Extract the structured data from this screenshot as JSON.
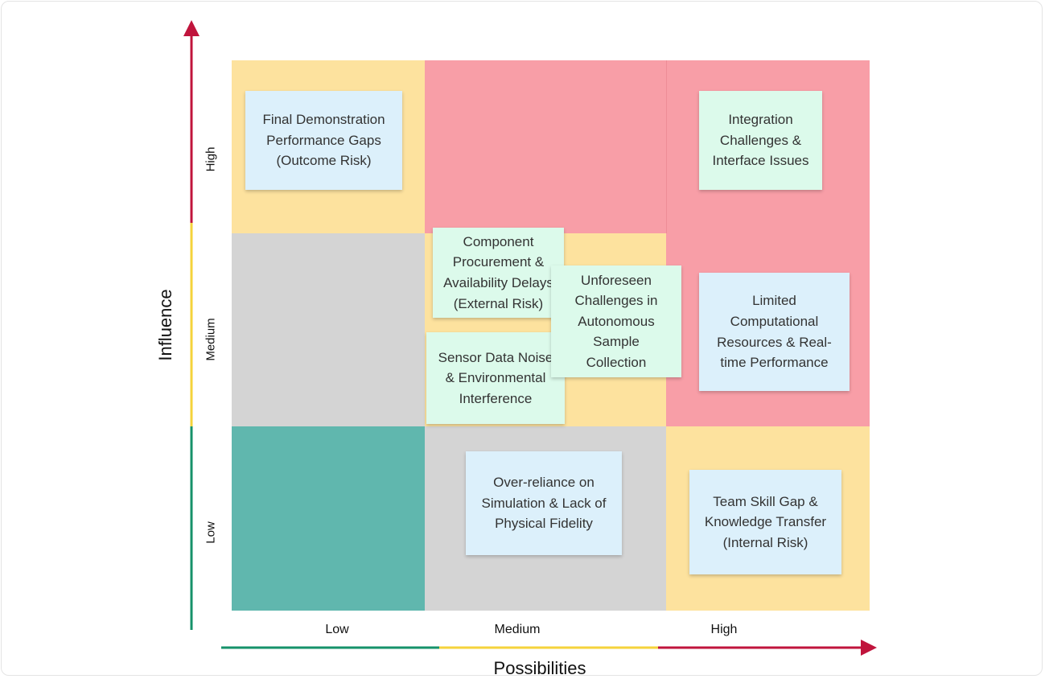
{
  "colors": {
    "red_zone": "#f89ea7",
    "amber_zone": "#fde29e",
    "grey_zone": "#d4d4d4",
    "teal_zone": "#60b7ae",
    "note_blue": "#dcf0fb",
    "note_green": "#dcfaeb",
    "axis_red": "#c0143c",
    "axis_yellow": "#f5d33b",
    "axis_green": "#16926a"
  },
  "axes": {
    "y_title": "Influence",
    "x_title": "Possibilities",
    "y_levels": [
      "High",
      "Medium",
      "Low"
    ],
    "x_levels": [
      "Low",
      "Medium",
      "High"
    ]
  },
  "notes": {
    "final_demo": "Final Demonstration\nPerformance Gaps\n(Outcome Risk)",
    "integration": "Integration\nChallenges &\nInterface Issues",
    "component": "Component\nProcurement &\nAvailability Delays\n(External Risk)",
    "unforeseen": "Unforeseen\nChallenges  in\nAutonomous\nSample\nCollection",
    "sensor": "Sensor Data Noise\n& Environmental\nInterference",
    "limited": "Limited\nComputational\nResources & Real-\ntime Performance",
    "overreliance": "Over-reliance on\nSimulation & Lack of\nPhysical  Fidelity",
    "team_skill": "Team Skill Gap &\nKnowledge Transfer\n(Internal Risk)"
  }
}
